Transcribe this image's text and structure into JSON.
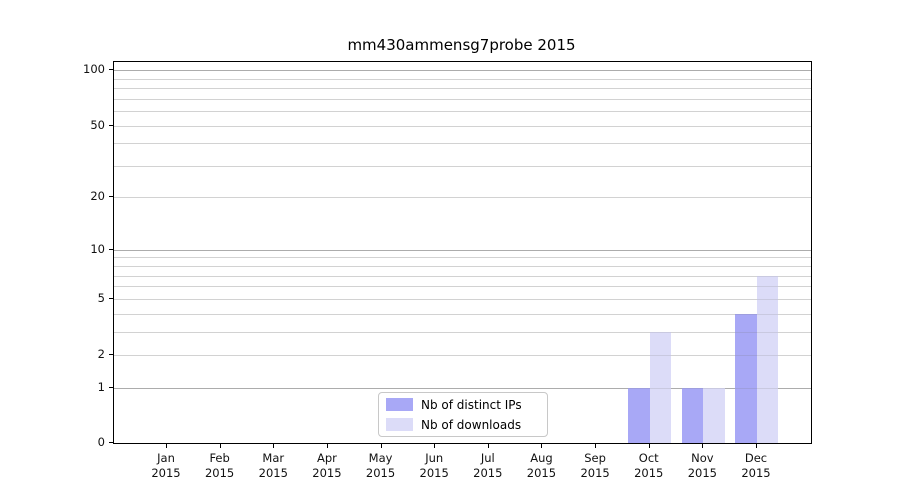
{
  "chart_data": {
    "type": "bar",
    "title": "mm430ammensg7probe 2015",
    "categories": [
      "Jan 2015",
      "Feb 2015",
      "Mar 2015",
      "Apr 2015",
      "May 2015",
      "Jun 2015",
      "Jul 2015",
      "Aug 2015",
      "Sep 2015",
      "Oct 2015",
      "Nov 2015",
      "Dec 2015"
    ],
    "series": [
      {
        "name": "Nb of distinct IPs",
        "color": "#a8a8f6",
        "values": [
          0,
          0,
          0,
          0,
          0,
          0,
          0,
          0,
          0,
          1,
          1,
          4
        ]
      },
      {
        "name": "Nb of downloads",
        "color": "#dcdcf8",
        "values": [
          0,
          0,
          0,
          0,
          0,
          0,
          0,
          0,
          0,
          3,
          1,
          7
        ]
      }
    ],
    "yscale": "log1p",
    "ylim": [
      0,
      110
    ],
    "y_ticks": [
      0,
      1,
      2,
      5,
      10,
      20,
      50,
      100
    ],
    "y_gridlines_major": [
      1,
      10,
      100
    ],
    "y_gridlines_minor": [
      2,
      3,
      4,
      5,
      6,
      7,
      8,
      9,
      20,
      30,
      40,
      50,
      60,
      70,
      80,
      90
    ],
    "grid": true,
    "legend_position": "lower center inside",
    "xlabel": "",
    "ylabel": ""
  },
  "colors": {
    "background": "#ffffff",
    "axis": "#000000",
    "grid_major": "#b9b9b9",
    "grid_minor": "#e7e7e7",
    "text": "#111111",
    "legend_border": "#c8c8c8"
  }
}
